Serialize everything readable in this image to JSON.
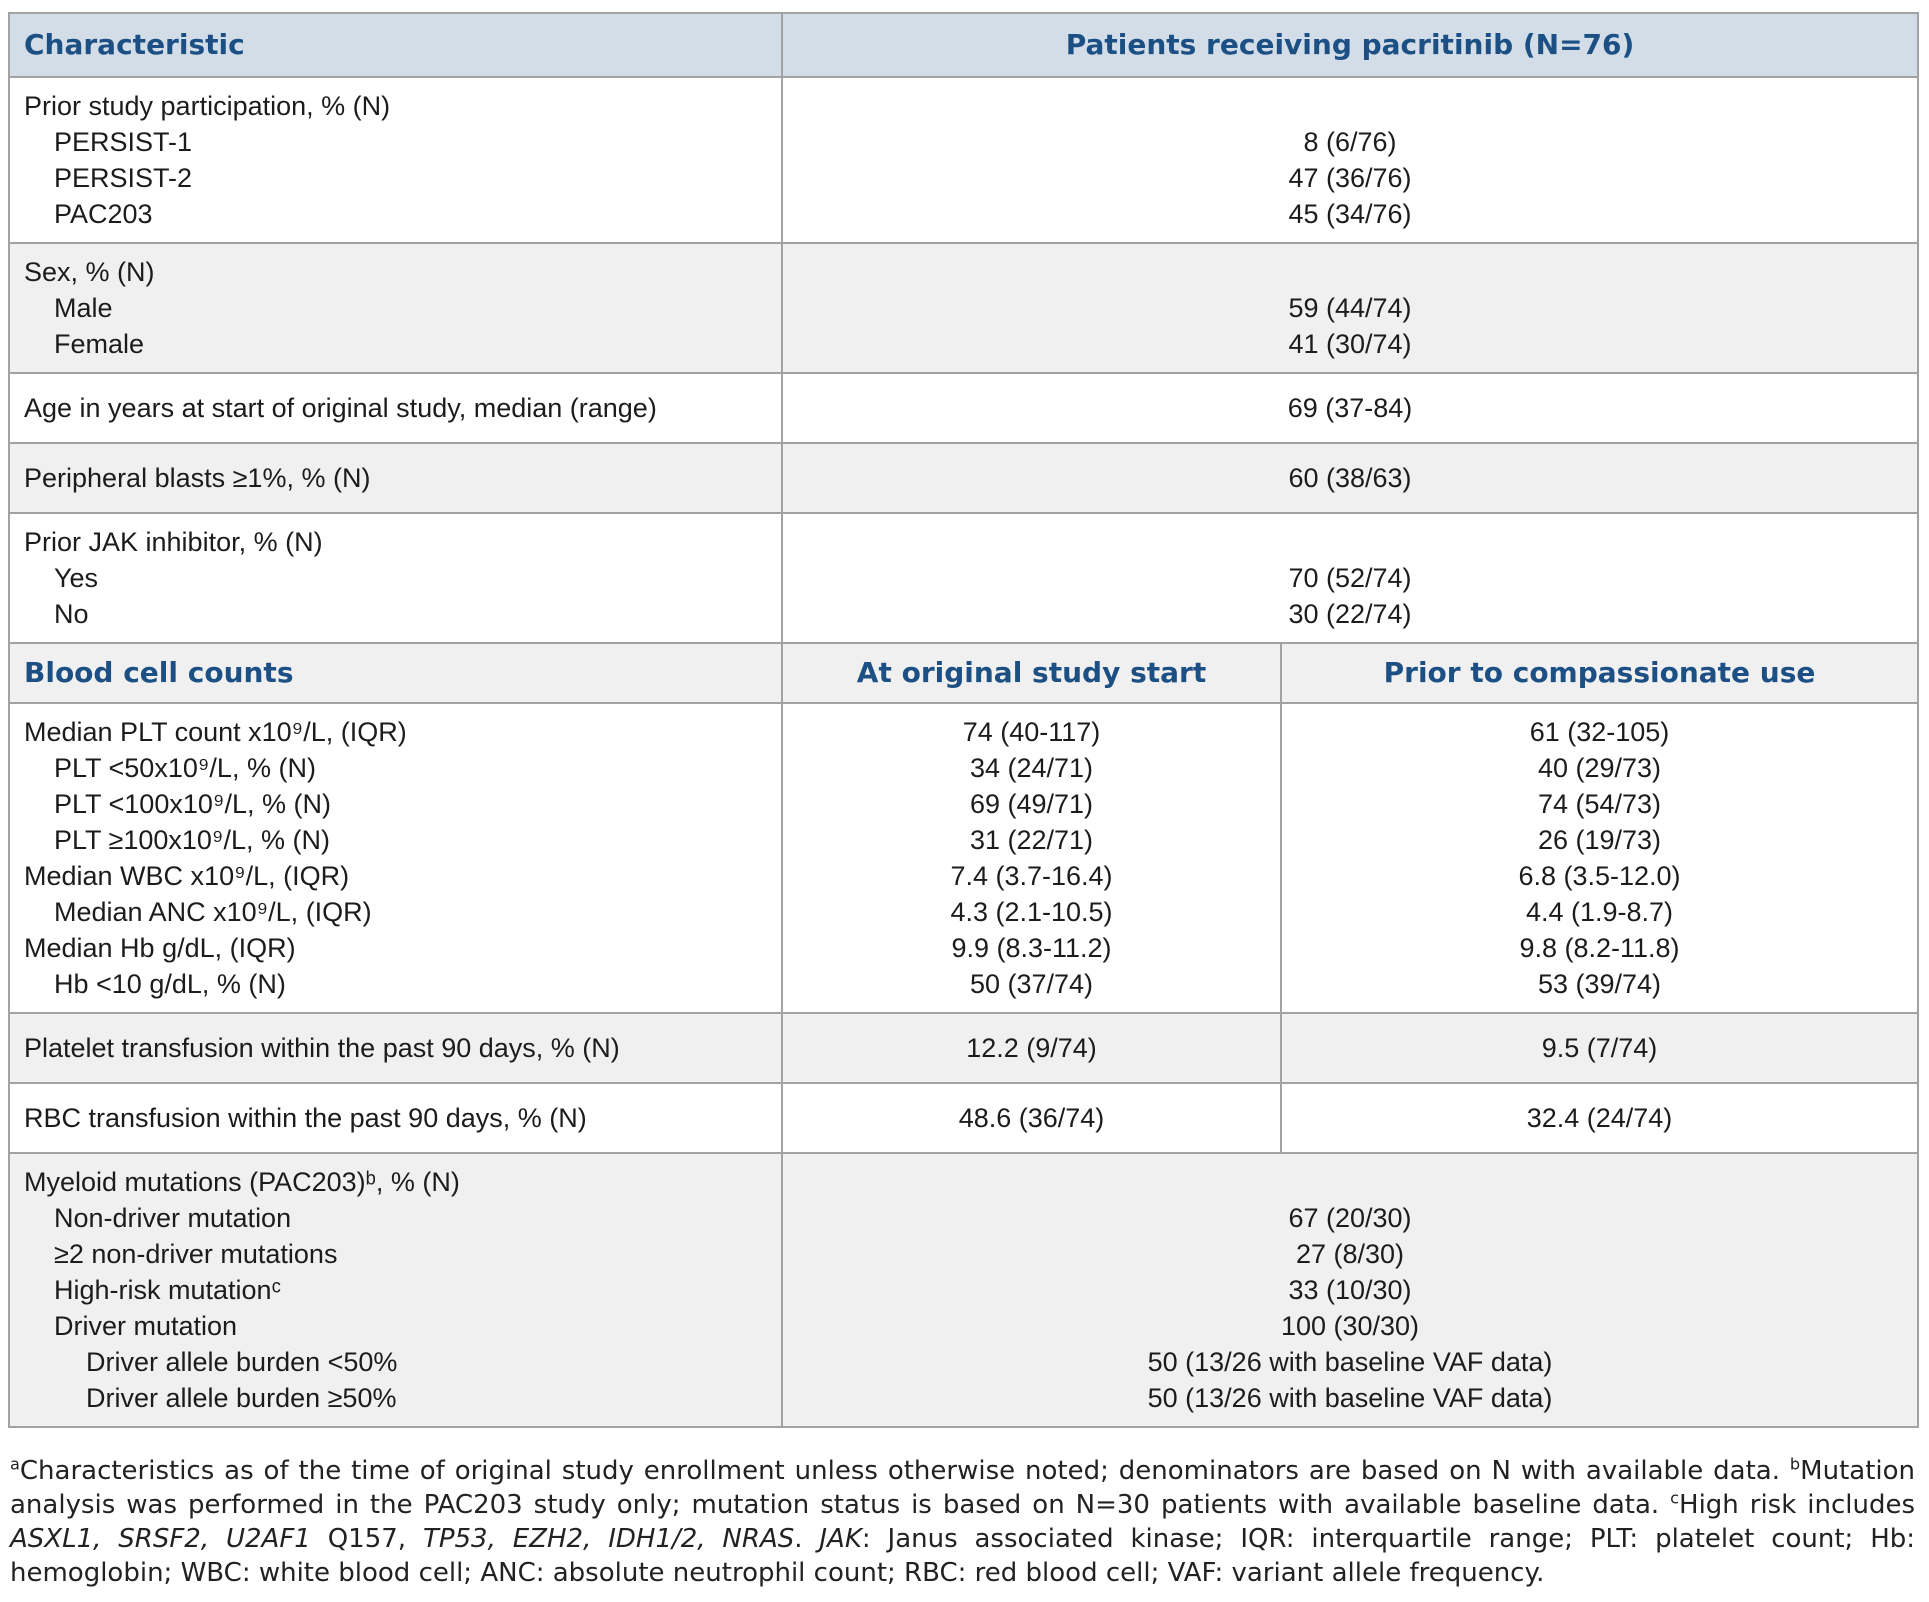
{
  "colors": {
    "header_bg": "#d3dde7",
    "header_text": "#1c5084",
    "row_alt": "#f0f0f1",
    "row_white": "#ffffff",
    "border": "#a2a2a2",
    "text": "#1c1c1c",
    "footnote_text": "#222222"
  },
  "table": {
    "header": {
      "characteristic": "Characteristic",
      "patients": "Patients receiving pacritinib (N=76)"
    },
    "subheader": {
      "blood": "Blood cell counts",
      "start": "At original study start",
      "prior": "Prior to compassionate use"
    },
    "rows": {
      "prior": {
        "label": "Prior study participation, % (N)",
        "items": [
          "PERSIST-1",
          "PERSIST-2",
          "PAC203"
        ],
        "values": [
          "8 (6/76)",
          "47 (36/76)",
          "45 (34/76)"
        ]
      },
      "sex": {
        "label": "Sex, % (N)",
        "items": [
          "Male",
          "Female"
        ],
        "values": [
          "59 (44/74)",
          "41 (30/74)"
        ]
      },
      "age": {
        "label": "Age in years at start of original study, median (range)",
        "value": "69 (37-84)"
      },
      "blasts": {
        "label": "Peripheral blasts ≥1%, % (N)",
        "value": "60 (38/63)"
      },
      "jak": {
        "label": "Prior JAK inhibitor, % (N)",
        "items": [
          "Yes",
          "No"
        ],
        "values": [
          "70 (52/74)",
          "30 (22/74)"
        ]
      },
      "blood": {
        "lines": [
          {
            "label": "Median PLT count x10⁹/L, (IQR)",
            "v1": "74 (40-117)",
            "v2": "61 (32-105)"
          },
          {
            "label": "PLT <50x10⁹/L, % (N)",
            "v1": "34 (24/71)",
            "v2": "40 (29/73)"
          },
          {
            "label": "PLT <100x10⁹/L, % (N)",
            "v1": "69 (49/71)",
            "v2": "74 (54/73)"
          },
          {
            "label": "PLT ≥100x10⁹/L, % (N)",
            "v1": "31 (22/71)",
            "v2": "26 (19/73)"
          },
          {
            "label": "Median WBC x10⁹/L, (IQR)",
            "v1": "7.4 (3.7-16.4)",
            "v2": "6.8 (3.5-12.0)"
          },
          {
            "label": "Median ANC x10⁹/L, (IQR)",
            "v1": "4.3 (2.1-10.5)",
            "v2": "4.4 (1.9-8.7)"
          },
          {
            "label": "Median Hb g/dL, (IQR)",
            "v1": "9.9 (8.3-11.2)",
            "v2": "9.8 (8.2-11.8)"
          },
          {
            "label": "Hb <10 g/dL, % (N)",
            "v1": "50 (37/74)",
            "v2": "53 (39/74)"
          }
        ]
      },
      "plt_tx": {
        "label": "Platelet transfusion within the past 90 days, % (N)",
        "v1": "12.2 (9/74)",
        "v2": "9.5 (7/74)"
      },
      "rbc_tx": {
        "label": "RBC transfusion within the past 90 days, % (N)",
        "v1": "48.6 (36/74)",
        "v2": "32.4 (24/74)"
      },
      "mut": {
        "label": "Myeloid mutations (PAC203)ᵇ, % (N)",
        "items": [
          "Non-driver mutation",
          "≥2 non-driver mutations",
          "High-risk mutationᶜ",
          "Driver mutation",
          "Driver allele burden <50%",
          "Driver allele burden ≥50%"
        ],
        "values": [
          "67 (20/30)",
          "27 (8/30)",
          "33 (10/30)",
          "100 (30/30)",
          "50 (13/26 with baseline VAF data)",
          "50 (13/26 with baseline VAF data)"
        ]
      }
    }
  },
  "footnote": {
    "runs": [
      {
        "sup": "a"
      },
      {
        "t": "Characteristics as of the time of original study enrollment unless otherwise noted; denominators are based on N with available data. "
      },
      {
        "sup": "b"
      },
      {
        "t": "Mutation analysis was performed in the PAC203 study only; mutation status is based on N=30 patients with available baseline data. "
      },
      {
        "sup": "c"
      },
      {
        "t": "High risk includes "
      },
      {
        "t": "ASXL1, SRSF2, U2AF1",
        "i": true
      },
      {
        "t": " Q157, "
      },
      {
        "t": "TP53, EZH2, IDH1/2, NRAS",
        "i": true
      },
      {
        "t": ". "
      },
      {
        "t": "JAK",
        "i": true
      },
      {
        "t": ": Janus associated kinase; IQR: interquartile range; PLT: platelet count; Hb: hemoglobin; WBC: white blood cell; ANC: absolute neutrophil count; RBC: red blood cell; VAF: variant allele frequency."
      }
    ]
  }
}
